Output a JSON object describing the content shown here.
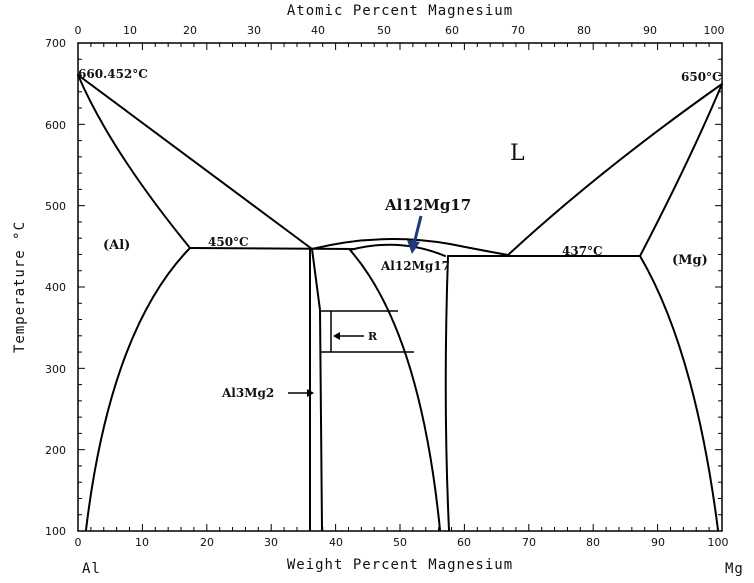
{
  "axes": {
    "top_title": "Atomic Percent Magnesium",
    "bottom_title": "Weight Percent Magnesium",
    "left_title": "Temperature °C",
    "x_ticks": [
      "0",
      "10",
      "20",
      "30",
      "40",
      "50",
      "60",
      "70",
      "80",
      "90",
      "100"
    ],
    "y_ticks": [
      "700",
      "600",
      "500",
      "400",
      "300",
      "200",
      "100"
    ],
    "left_element": "Al",
    "right_element": "Mg"
  },
  "labels": {
    "al_melting": "660.452°C",
    "mg_melting": "650°C",
    "liquid": "L",
    "al_phase": "(Al)",
    "mg_phase": "(Mg)",
    "eutectic_left": "450°C",
    "eutectic_right": "437°C",
    "al12mg17_phase": "Al12Mg17",
    "al3mg2": "Al3Mg2",
    "r_phase": "R",
    "callout_al12mg17": "Al12Mg17"
  },
  "colors": {
    "line": "#000000",
    "arrow": "#1f3a78"
  }
}
